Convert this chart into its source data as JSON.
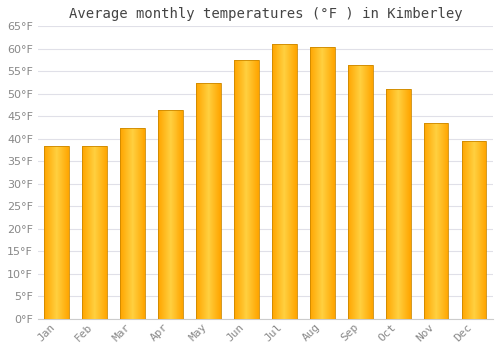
{
  "title": "Average monthly temperatures (°F ) in Kimberley",
  "months": [
    "Jan",
    "Feb",
    "Mar",
    "Apr",
    "May",
    "Jun",
    "Jul",
    "Aug",
    "Sep",
    "Oct",
    "Nov",
    "Dec"
  ],
  "values": [
    38.5,
    38.5,
    42.5,
    46.5,
    52.5,
    57.5,
    61.0,
    60.5,
    56.5,
    51.0,
    43.5,
    39.5
  ],
  "bar_color_top": "#FFA500",
  "bar_color_mid": "#FFD040",
  "bar_color_bottom": "#FFA500",
  "bar_edge_color": "#CC8800",
  "background_color": "#FFFFFF",
  "grid_color": "#E0E0E8",
  "ylim": [
    0,
    65
  ],
  "yticks": [
    0,
    5,
    10,
    15,
    20,
    25,
    30,
    35,
    40,
    45,
    50,
    55,
    60,
    65
  ],
  "title_fontsize": 10,
  "tick_fontsize": 8,
  "tick_color": "#888888",
  "title_color": "#444444",
  "bar_width": 0.65
}
